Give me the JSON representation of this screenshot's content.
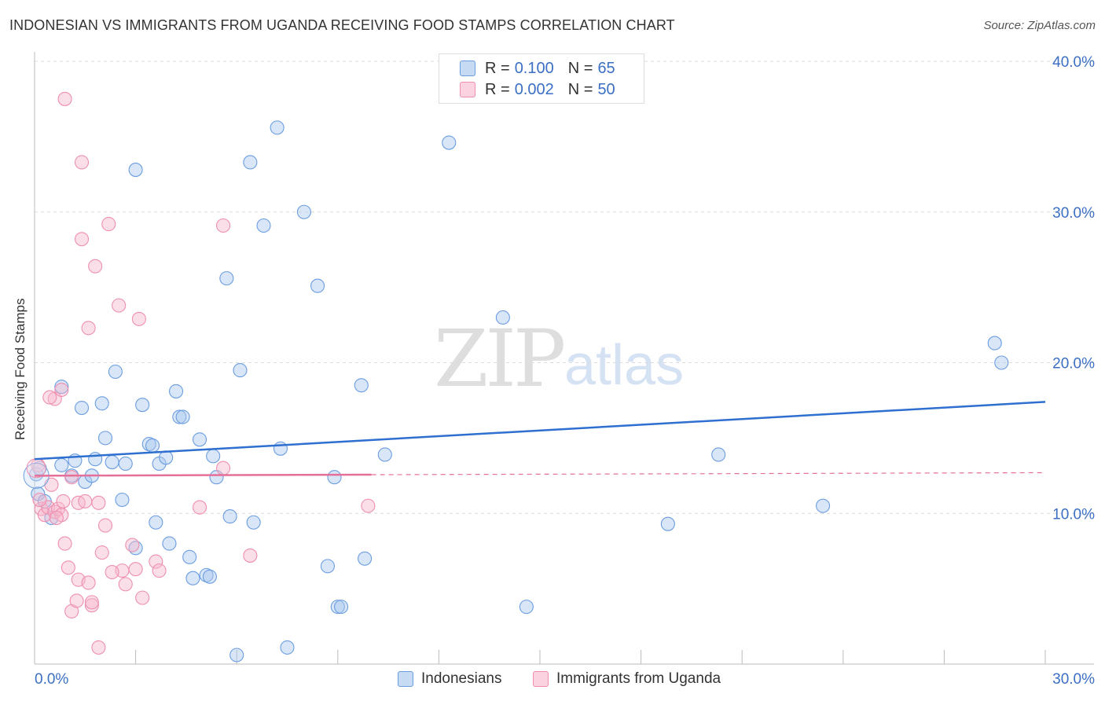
{
  "title": "INDONESIAN VS IMMIGRANTS FROM UGANDA RECEIVING FOOD STAMPS CORRELATION CHART",
  "source": "Source: ZipAtlas.com",
  "watermark": {
    "zip": "ZIP",
    "atlas": "atlas"
  },
  "legend_top": [
    {
      "r_label": "R =",
      "r_value": "0.100",
      "n_label": "N =",
      "n_value": "65",
      "color": "#a9c7ee"
    },
    {
      "r_label": "R =",
      "r_value": "0.002",
      "n_label": "N =",
      "n_value": "50",
      "color": "#f7b8cc"
    }
  ],
  "chart_data": {
    "type": "scatter",
    "title": "INDONESIAN VS IMMIGRANTS FROM UGANDA RECEIVING FOOD STAMPS CORRELATION CHART",
    "xlabel": "",
    "ylabel": "Receiving Food Stamps",
    "xlim": [
      0,
      30
    ],
    "ylim": [
      0,
      40
    ],
    "x_tick_labels": [
      "0.0%",
      "30.0%"
    ],
    "y_tick_labels": [
      "10.0%",
      "20.0%",
      "30.0%",
      "40.0%"
    ],
    "y_ticks": [
      10,
      20,
      30,
      40
    ],
    "grid": true,
    "legend_placement": "top-center",
    "series": [
      {
        "name": "Indonesians",
        "color": "#6b9de0",
        "fill": "#a9c7ee",
        "trend": {
          "x": [
            0,
            30
          ],
          "y": [
            13.6,
            17.4
          ],
          "color": "#2f6fd0",
          "dashed_from": null
        },
        "points": [
          [
            0.1,
            11.3
          ],
          [
            0.3,
            10.8
          ],
          [
            0.5,
            9.7
          ],
          [
            0.8,
            13.2
          ],
          [
            0.8,
            18.4
          ],
          [
            1.1,
            12.5
          ],
          [
            1.2,
            13.5
          ],
          [
            1.4,
            17.0
          ],
          [
            1.5,
            12.1
          ],
          [
            1.7,
            12.5
          ],
          [
            1.8,
            13.6
          ],
          [
            2.0,
            17.3
          ],
          [
            2.1,
            15.0
          ],
          [
            2.3,
            13.4
          ],
          [
            2.4,
            19.4
          ],
          [
            2.6,
            10.9
          ],
          [
            2.7,
            13.3
          ],
          [
            3.0,
            7.7
          ],
          [
            3.0,
            32.8
          ],
          [
            3.2,
            17.2
          ],
          [
            3.4,
            14.6
          ],
          [
            3.5,
            14.5
          ],
          [
            3.6,
            9.4
          ],
          [
            3.7,
            13.3
          ],
          [
            3.9,
            13.7
          ],
          [
            4.0,
            8.0
          ],
          [
            4.2,
            18.1
          ],
          [
            4.3,
            16.4
          ],
          [
            4.4,
            16.4
          ],
          [
            4.6,
            7.1
          ],
          [
            4.7,
            5.7
          ],
          [
            4.9,
            14.9
          ],
          [
            5.1,
            5.9
          ],
          [
            5.2,
            5.8
          ],
          [
            5.3,
            13.8
          ],
          [
            5.4,
            12.4
          ],
          [
            5.7,
            25.6
          ],
          [
            5.8,
            9.8
          ],
          [
            6.0,
            0.6
          ],
          [
            6.1,
            19.5
          ],
          [
            6.4,
            33.3
          ],
          [
            6.5,
            9.4
          ],
          [
            6.8,
            29.1
          ],
          [
            7.2,
            35.6
          ],
          [
            7.3,
            14.3
          ],
          [
            7.5,
            1.1
          ],
          [
            8.0,
            30.0
          ],
          [
            8.4,
            25.1
          ],
          [
            8.7,
            6.5
          ],
          [
            8.9,
            12.4
          ],
          [
            9.0,
            3.8
          ],
          [
            9.1,
            3.8
          ],
          [
            9.7,
            18.5
          ],
          [
            9.8,
            7.0
          ],
          [
            10.4,
            13.9
          ],
          [
            12.3,
            34.6
          ],
          [
            13.9,
            23.0
          ],
          [
            14.6,
            3.8
          ],
          [
            18.8,
            9.3
          ],
          [
            20.3,
            13.9
          ],
          [
            23.4,
            10.5
          ],
          [
            28.5,
            21.3
          ],
          [
            28.7,
            20.0
          ],
          [
            0.05,
            12.6
          ],
          [
            0.15,
            13.0
          ]
        ]
      },
      {
        "name": "Immigrants from Uganda",
        "color": "#ee8fb0",
        "fill": "#f7b8cc",
        "trend": {
          "x": [
            0,
            30
          ],
          "y": [
            12.5,
            12.7
          ],
          "color": "#e4709a",
          "dashed_from": 10
        },
        "points": [
          [
            0.1,
            13.2
          ],
          [
            0.2,
            10.3
          ],
          [
            0.3,
            9.9
          ],
          [
            0.4,
            10.4
          ],
          [
            0.5,
            11.9
          ],
          [
            0.6,
            10.1
          ],
          [
            0.6,
            17.6
          ],
          [
            0.7,
            10.3
          ],
          [
            0.8,
            9.9
          ],
          [
            0.8,
            18.2
          ],
          [
            0.9,
            8.0
          ],
          [
            0.9,
            37.5
          ],
          [
            1.0,
            6.4
          ],
          [
            1.1,
            3.5
          ],
          [
            1.1,
            12.4
          ],
          [
            1.3,
            5.6
          ],
          [
            1.3,
            10.7
          ],
          [
            1.4,
            28.2
          ],
          [
            1.4,
            33.3
          ],
          [
            1.5,
            10.8
          ],
          [
            1.6,
            5.4
          ],
          [
            1.6,
            22.3
          ],
          [
            1.7,
            3.9
          ],
          [
            1.7,
            4.1
          ],
          [
            1.8,
            26.4
          ],
          [
            1.9,
            10.7
          ],
          [
            1.9,
            1.1
          ],
          [
            2.0,
            7.4
          ],
          [
            2.1,
            9.2
          ],
          [
            2.2,
            29.2
          ],
          [
            2.5,
            23.8
          ],
          [
            2.6,
            6.2
          ],
          [
            2.7,
            5.3
          ],
          [
            2.9,
            7.9
          ],
          [
            3.0,
            6.3
          ],
          [
            3.1,
            22.9
          ],
          [
            3.2,
            4.4
          ],
          [
            3.6,
            6.8
          ],
          [
            3.7,
            6.2
          ],
          [
            4.9,
            10.4
          ],
          [
            5.6,
            29.1
          ],
          [
            5.6,
            13.0
          ],
          [
            6.4,
            7.2
          ],
          [
            9.9,
            10.5
          ],
          [
            0.15,
            10.9
          ],
          [
            0.45,
            17.7
          ],
          [
            1.25,
            4.2
          ],
          [
            2.3,
            6.1
          ],
          [
            0.65,
            9.7
          ],
          [
            0.85,
            10.8
          ]
        ]
      }
    ]
  },
  "bottom_legend": [
    {
      "label": "Indonesians",
      "color": "#a9c7ee"
    },
    {
      "label": "Immigrants from Uganda",
      "color": "#f7b8cc"
    }
  ]
}
